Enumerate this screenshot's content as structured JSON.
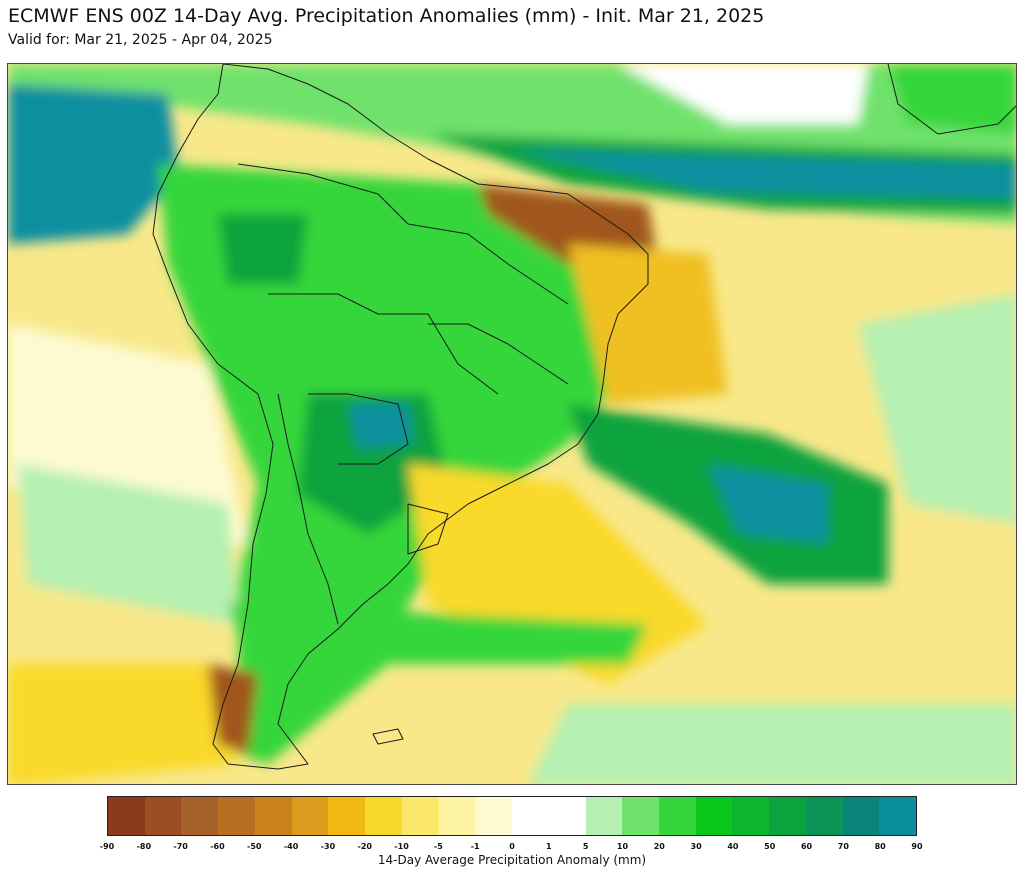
{
  "header": {
    "title": "ECMWF ENS 00Z 14-Day Avg. Precipitation Anomalies (mm) - Init. Mar 21, 2025",
    "subtitle": "Valid for: Mar 21, 2025 - Apr 04, 2025"
  },
  "legend": {
    "label": "14-Day Average Precipitation Anomaly (mm)",
    "ticks": [
      "-90",
      "-80",
      "-70",
      "-60",
      "-50",
      "-40",
      "-30",
      "-20",
      "-10",
      "-5",
      "-1",
      "0",
      "1",
      "5",
      "10",
      "20",
      "30",
      "40",
      "50",
      "60",
      "70",
      "80",
      "90"
    ],
    "colors": [
      "#8b3a1e",
      "#9c4d22",
      "#a7612b",
      "#b86f21",
      "#ca821c",
      "#dc9b1c",
      "#f0b911",
      "#f9d92a",
      "#fbe769",
      "#fdf4a3",
      "#fdfad1",
      "#ffffff",
      "#ffffff",
      "#b5f0b2",
      "#6fe26c",
      "#36d63a",
      "#0ac81a",
      "#0bb52d",
      "#0aa33d",
      "#0a9456",
      "#0a8479",
      "#0a8f9e",
      "#0aa8c0"
    ]
  },
  "map": {
    "region": "South America",
    "colors": {
      "ocean_neutral": "#fdfad1",
      "dry_moderate": "#f0c020",
      "dry_strong": "#a0561f",
      "wet_light": "#b5f0b2",
      "wet_moderate": "#36d63a",
      "wet_strong": "#0aa33d",
      "wet_very_strong": "#0a8fa0",
      "borders": "#1a1a1a"
    }
  }
}
